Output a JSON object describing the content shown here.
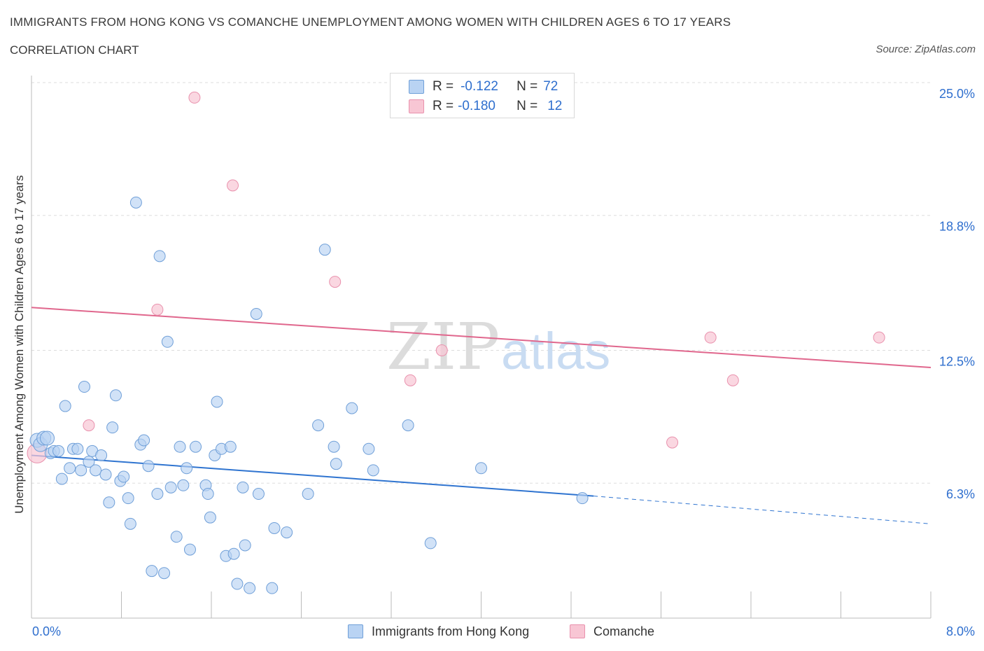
{
  "header": {
    "title": "IMMIGRANTS FROM HONG KONG VS COMANCHE UNEMPLOYMENT AMONG WOMEN WITH CHILDREN AGES 6 TO 17 YEARS",
    "subtitle": "CORRELATION CHART",
    "source": "Source: ZipAtlas.com"
  },
  "legend": {
    "rows": [
      {
        "r_label": "R =",
        "r_value": "-0.122",
        "n_label": "N =",
        "n_value": "72"
      },
      {
        "r_label": "R =",
        "r_value": "-0.180",
        "n_label": "N =",
        "n_value": "12"
      }
    ]
  },
  "watermark": {
    "zip": "ZIP",
    "atlas": "atlas"
  },
  "colors": {
    "blue_fill": "#b9d3f3",
    "blue_stroke": "#6f9fd8",
    "blue_line": "#2f74d0",
    "pink_fill": "#f8c6d4",
    "pink_stroke": "#e991ad",
    "pink_line": "#e0678d",
    "tick_label": "#2f6fce",
    "grid": "#dddddd"
  },
  "chart_data": {
    "type": "scatter",
    "title": "IMMIGRANTS FROM HONG KONG VS COMANCHE UNEMPLOYMENT AMONG WOMEN WITH CHILDREN AGES 6 TO 17 YEARS",
    "xlabel": "",
    "ylabel": "Unemployment Among Women with Children Ages 6 to 17 years",
    "xlim": [
      0,
      8
    ],
    "ylim": [
      0,
      25
    ],
    "x_tick_labels": [
      "0.0%",
      "8.0%"
    ],
    "y_tick_labels": [
      "6.3%",
      "12.5%",
      "18.8%",
      "25.0%"
    ],
    "y_ticks": [
      6.3,
      12.5,
      18.8,
      25.0
    ],
    "grid": true,
    "legend_position": "bottom-center",
    "series": [
      {
        "name": "Immigrants from Hong Kong",
        "color": "#b9d3f3",
        "trend": {
          "x_start": 0.0,
          "y_start": 7.6,
          "x_end_solid": 5.0,
          "y_end_solid": 5.7,
          "x_end": 8.0,
          "y_end": 4.4
        },
        "points": [
          {
            "x": 0.05,
            "y": 8.3
          },
          {
            "x": 0.08,
            "y": 8.1
          },
          {
            "x": 0.11,
            "y": 8.4
          },
          {
            "x": 0.14,
            "y": 8.4
          },
          {
            "x": 0.17,
            "y": 7.7
          },
          {
            "x": 0.2,
            "y": 7.8
          },
          {
            "x": 0.24,
            "y": 7.8
          },
          {
            "x": 0.3,
            "y": 9.9
          },
          {
            "x": 0.27,
            "y": 6.5
          },
          {
            "x": 0.34,
            "y": 7.0
          },
          {
            "x": 0.37,
            "y": 7.9
          },
          {
            "x": 0.41,
            "y": 7.9
          },
          {
            "x": 0.44,
            "y": 6.9
          },
          {
            "x": 0.47,
            "y": 10.8
          },
          {
            "x": 0.51,
            "y": 7.3
          },
          {
            "x": 0.54,
            "y": 7.8
          },
          {
            "x": 0.57,
            "y": 6.9
          },
          {
            "x": 0.62,
            "y": 7.6
          },
          {
            "x": 0.66,
            "y": 6.7
          },
          {
            "x": 0.69,
            "y": 5.4
          },
          {
            "x": 0.72,
            "y": 8.9
          },
          {
            "x": 0.75,
            "y": 10.4
          },
          {
            "x": 0.79,
            "y": 6.4
          },
          {
            "x": 0.82,
            "y": 6.6
          },
          {
            "x": 0.86,
            "y": 5.6
          },
          {
            "x": 0.88,
            "y": 4.4
          },
          {
            "x": 0.93,
            "y": 19.4
          },
          {
            "x": 0.97,
            "y": 8.1
          },
          {
            "x": 1.0,
            "y": 8.3
          },
          {
            "x": 1.04,
            "y": 7.1
          },
          {
            "x": 1.07,
            "y": 2.2
          },
          {
            "x": 1.12,
            "y": 5.8
          },
          {
            "x": 1.14,
            "y": 16.9
          },
          {
            "x": 1.18,
            "y": 2.1
          },
          {
            "x": 1.21,
            "y": 12.9
          },
          {
            "x": 1.24,
            "y": 6.1
          },
          {
            "x": 1.29,
            "y": 3.8
          },
          {
            "x": 1.32,
            "y": 8.0
          },
          {
            "x": 1.35,
            "y": 6.2
          },
          {
            "x": 1.38,
            "y": 7.0
          },
          {
            "x": 1.41,
            "y": 3.2
          },
          {
            "x": 1.46,
            "y": 8.0
          },
          {
            "x": 1.55,
            "y": 6.2
          },
          {
            "x": 1.57,
            "y": 5.8
          },
          {
            "x": 1.59,
            "y": 4.7
          },
          {
            "x": 1.63,
            "y": 7.6
          },
          {
            "x": 1.65,
            "y": 10.1
          },
          {
            "x": 1.69,
            "y": 7.9
          },
          {
            "x": 1.73,
            "y": 2.9
          },
          {
            "x": 1.77,
            "y": 8.0
          },
          {
            "x": 1.8,
            "y": 3.0
          },
          {
            "x": 1.83,
            "y": 1.6
          },
          {
            "x": 1.88,
            "y": 6.1
          },
          {
            "x": 1.9,
            "y": 3.4
          },
          {
            "x": 1.94,
            "y": 1.4
          },
          {
            "x": 2.0,
            "y": 14.2
          },
          {
            "x": 2.02,
            "y": 5.8
          },
          {
            "x": 2.14,
            "y": 1.4
          },
          {
            "x": 2.16,
            "y": 4.2
          },
          {
            "x": 2.27,
            "y": 4.0
          },
          {
            "x": 2.46,
            "y": 5.8
          },
          {
            "x": 2.55,
            "y": 9.0
          },
          {
            "x": 2.61,
            "y": 17.2
          },
          {
            "x": 2.69,
            "y": 8.0
          },
          {
            "x": 2.71,
            "y": 7.2
          },
          {
            "x": 2.85,
            "y": 9.8
          },
          {
            "x": 3.0,
            "y": 7.9
          },
          {
            "x": 3.04,
            "y": 6.9
          },
          {
            "x": 3.35,
            "y": 9.0
          },
          {
            "x": 3.55,
            "y": 3.5
          },
          {
            "x": 4.0,
            "y": 7.0
          },
          {
            "x": 4.9,
            "y": 5.6
          }
        ]
      },
      {
        "name": "Comanche",
        "color": "#f8c6d4",
        "trend": {
          "x_start": 0.0,
          "y_start": 14.5,
          "x_end": 8.0,
          "y_end": 11.7
        },
        "points": [
          {
            "x": 0.05,
            "y": 7.7
          },
          {
            "x": 0.51,
            "y": 9.0
          },
          {
            "x": 1.12,
            "y": 14.4
          },
          {
            "x": 1.45,
            "y": 24.3
          },
          {
            "x": 1.79,
            "y": 20.2
          },
          {
            "x": 2.7,
            "y": 15.7
          },
          {
            "x": 3.37,
            "y": 11.1
          },
          {
            "x": 3.65,
            "y": 12.5
          },
          {
            "x": 5.7,
            "y": 8.2
          },
          {
            "x": 6.04,
            "y": 13.1
          },
          {
            "x": 6.24,
            "y": 11.1
          },
          {
            "x": 7.54,
            "y": 13.1
          }
        ]
      }
    ]
  }
}
